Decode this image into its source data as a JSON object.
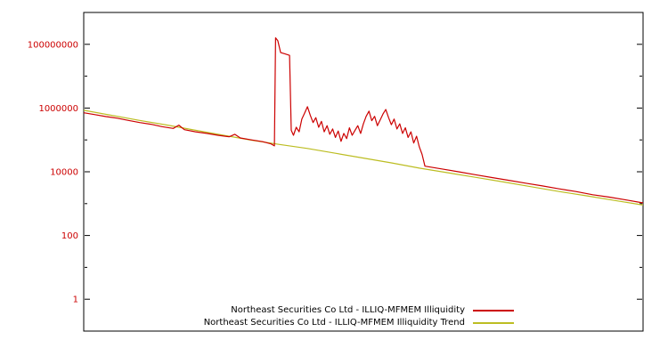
{
  "chart_data": {
    "type": "line",
    "title": "",
    "xlabel": "",
    "ylabel": "",
    "background": "#ffffff",
    "border_color": "#000000",
    "grid": false,
    "legend_position": "bottom-center-inside",
    "x_axis": {
      "ticks_visible": false,
      "xlim_frac": [
        0,
        1
      ]
    },
    "y_axis": {
      "scale": "log",
      "ylim": [
        0.1,
        1000000000
      ],
      "label_color": "#cc0000",
      "major": {
        "values": [
          1,
          100,
          10000,
          1000000,
          100000000
        ],
        "labels": [
          "1",
          "100",
          "10000",
          "1000000",
          "100000000"
        ]
      },
      "minor": {
        "values": [
          10,
          1000,
          100000,
          10000000
        ]
      }
    },
    "series": [
      {
        "id": "illiquidity",
        "name": "Northeast Securities Co Ltd - ILLIQ-MFMEM Illiquidity",
        "color": "#cc0000",
        "x_frac": [
          0.0,
          0.02,
          0.04,
          0.06,
          0.08,
          0.1,
          0.12,
          0.14,
          0.16,
          0.17,
          0.18,
          0.2,
          0.22,
          0.24,
          0.26,
          0.27,
          0.28,
          0.3,
          0.32,
          0.335,
          0.341,
          0.343,
          0.347,
          0.352,
          0.36,
          0.368,
          0.371,
          0.375,
          0.38,
          0.385,
          0.39,
          0.395,
          0.4,
          0.405,
          0.41,
          0.415,
          0.42,
          0.425,
          0.43,
          0.435,
          0.44,
          0.445,
          0.45,
          0.455,
          0.46,
          0.465,
          0.47,
          0.475,
          0.48,
          0.485,
          0.49,
          0.495,
          0.5,
          0.505,
          0.51,
          0.515,
          0.52,
          0.525,
          0.53,
          0.535,
          0.54,
          0.545,
          0.55,
          0.555,
          0.56,
          0.565,
          0.57,
          0.575,
          0.58,
          0.585,
          0.59,
          0.595,
          0.6,
          0.605,
          0.61,
          0.64,
          0.67,
          0.7,
          0.73,
          0.76,
          0.79,
          0.82,
          0.85,
          0.88,
          0.91,
          0.94,
          0.97,
          1.0
        ],
        "values": [
          710000.0,
          620000.0,
          540000.0,
          480000.0,
          410000.0,
          350000.0,
          310000.0,
          260000.0,
          230000.0,
          290000.0,
          210000.0,
          180000.0,
          160000.0,
          140000.0,
          125000.0,
          150000.0,
          115000.0,
          100000.0,
          88000.0,
          75000.0,
          65000.0,
          160000000.0,
          130000000.0,
          55000000.0,
          50000000.0,
          45000000.0,
          200000.0,
          140000.0,
          250000.0,
          180000.0,
          450000.0,
          700000.0,
          1100000.0,
          600000.0,
          350000.0,
          500000.0,
          250000.0,
          380000.0,
          180000.0,
          280000.0,
          150000.0,
          220000.0,
          120000.0,
          190000.0,
          90000.0,
          160000.0,
          110000.0,
          240000.0,
          140000.0,
          200000.0,
          280000.0,
          160000.0,
          320000.0,
          550000.0,
          800000.0,
          400000.0,
          550000.0,
          280000.0,
          420000.0,
          650000.0,
          900000.0,
          500000.0,
          300000.0,
          450000.0,
          220000.0,
          320000.0,
          160000.0,
          240000.0,
          120000.0,
          180000.0,
          80000.0,
          130000.0,
          60000.0,
          35000.0,
          15000.0,
          12300.0,
          10000.0,
          8100.0,
          6600.0,
          5400.0,
          4400.0,
          3600.0,
          2900.0,
          2400.0,
          1900.0,
          1600.0,
          1300.0,
          1050.0
        ]
      },
      {
        "id": "trend",
        "name": "Northeast Securities Co Ltd - ILLIQ-MFMEM Illiquidity Trend",
        "color": "#bcbd22",
        "x_frac": [
          0.0,
          0.05,
          0.1,
          0.15,
          0.2,
          0.25,
          0.3,
          0.35,
          0.4,
          0.45,
          0.5,
          0.55,
          0.6,
          0.65,
          0.7,
          0.75,
          0.8,
          0.85,
          0.9,
          0.95,
          1.0
        ],
        "values": [
          850000.0,
          590000.0,
          410000.0,
          290000.0,
          200000.0,
          140000.0,
          98000.0,
          72000.0,
          54000.0,
          38000.0,
          27000.0,
          19000.0,
          13000.0,
          9400.0,
          6700.0,
          4800.0,
          3400.0,
          2400.0,
          1750.0,
          1250.0,
          900.0
        ]
      }
    ]
  },
  "legend": {
    "entries": [
      {
        "label": "Northeast Securities Co Ltd - ILLIQ-MFMEM Illiquidity"
      },
      {
        "label": "Northeast Securities Co Ltd - ILLIQ-MFMEM Illiquidity Trend"
      }
    ]
  }
}
